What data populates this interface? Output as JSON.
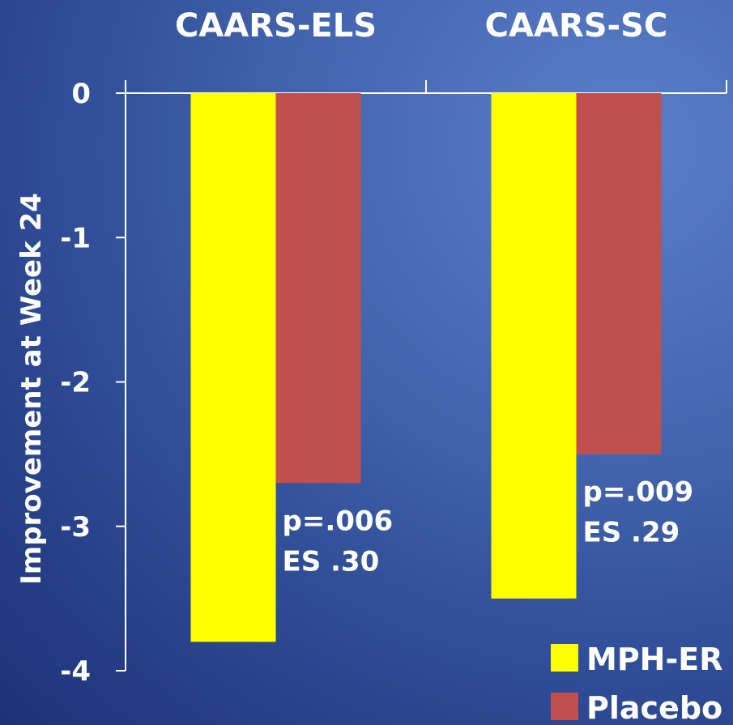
{
  "chart_data": {
    "type": "bar",
    "title": "",
    "xlabel": "",
    "ylabel": "Improvement at Week 24",
    "categories": [
      "CAARS-ELS",
      "CAARS-SC"
    ],
    "series": [
      {
        "name": "MPH-ER",
        "color": "#ffff00",
        "values": [
          -3.8,
          -3.5
        ]
      },
      {
        "name": "Placebo",
        "color": "#c0504d",
        "values": [
          -2.7,
          -2.5
        ]
      }
    ],
    "ylim": [
      -4,
      0
    ],
    "yticks": [
      "0",
      "-1",
      "-2",
      "-3",
      "-4"
    ],
    "grid": false,
    "legend": "bottom-right",
    "annotations": [
      {
        "category": "CAARS-ELS",
        "lines": [
          "p=.006",
          "ES .30"
        ]
      },
      {
        "category": "CAARS-SC",
        "lines": [
          "p=.009",
          "ES .29"
        ]
      }
    ]
  }
}
